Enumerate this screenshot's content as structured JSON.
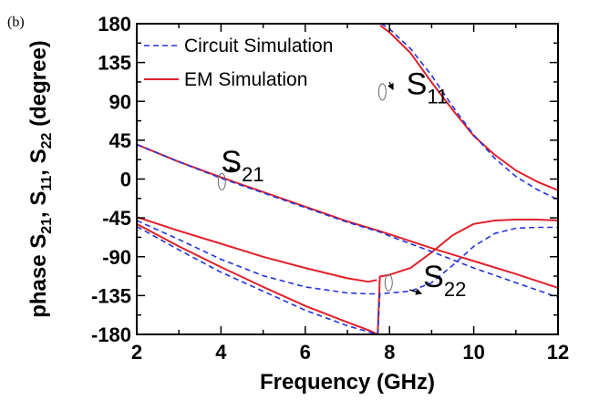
{
  "panel_label": "(b)",
  "colors": {
    "circuit": "#2233dd",
    "em": "#e0202a",
    "axis": "#000000"
  },
  "chart_data": {
    "type": "line",
    "title": "",
    "xlabel": "Frequency (GHz)",
    "ylabel_parts": [
      "phase S",
      "21",
      ", S",
      "11",
      ", S",
      "22",
      " (degree)"
    ],
    "xlim": [
      2,
      12
    ],
    "ylim": [
      -180,
      180
    ],
    "x_ticks": [
      2,
      4,
      6,
      8,
      10,
      12
    ],
    "y_ticks": [
      180,
      135,
      90,
      45,
      0,
      -45,
      -90,
      -135,
      -180
    ],
    "grid": false,
    "legend": {
      "placement": "top-left",
      "entries": [
        {
          "name": "Circuit Simulation",
          "style": "dashed",
          "color": "#2233dd"
        },
        {
          "name": "EM Simulation",
          "style": "solid",
          "color": "#e0202a"
        }
      ]
    },
    "annotations": [
      {
        "base": "S",
        "sub": "11",
        "x": 8.4,
        "y": 98
      },
      {
        "base": "S",
        "sub": "21",
        "x": 4.0,
        "y": 8
      },
      {
        "base": "S",
        "sub": "22",
        "x": 8.8,
        "y": -125
      }
    ],
    "series": [
      {
        "name": "EM Simulation",
        "curve": "S21",
        "style": "solid",
        "color": "#e0202a",
        "x": [
          2,
          3,
          4,
          5,
          6,
          7,
          7.75,
          8,
          9,
          10,
          11,
          12
        ],
        "y": [
          40,
          20,
          2,
          -15,
          -32,
          -49,
          -60,
          -64,
          -80,
          -95,
          -110,
          -126
        ]
      },
      {
        "name": "EM Simulation",
        "curve": "S11 (low)",
        "style": "solid",
        "color": "#e0202a",
        "x": [
          2,
          3,
          4,
          5,
          6,
          7,
          7.5,
          7.7
        ],
        "y": [
          -44,
          -60,
          -75,
          -90,
          -103,
          -115,
          -119,
          -117
        ]
      },
      {
        "name": "EM Simulation",
        "curve": "S11 (high)",
        "style": "solid",
        "color": "#e0202a",
        "x": [
          7.78,
          8,
          8.5,
          9,
          9.5,
          10,
          10.5,
          11,
          11.5,
          12
        ],
        "y": [
          178,
          170,
          146,
          112,
          80,
          50,
          28,
          10,
          -3,
          -13
        ]
      },
      {
        "name": "EM Simulation",
        "curve": "S22",
        "style": "solid",
        "color": "#e0202a",
        "x": [
          2,
          3,
          4,
          5,
          6,
          7,
          7.5,
          7.72,
          7.77,
          8,
          8.5,
          9,
          9.5,
          10,
          10.5,
          11,
          11.5,
          12
        ],
        "y": [
          -52,
          -78,
          -102,
          -125,
          -147,
          -166,
          -175,
          -180,
          -113,
          -111,
          -103,
          -85,
          -65,
          -52,
          -48,
          -47,
          -47,
          -48
        ]
      },
      {
        "name": "Circuit Simulation",
        "curve": "S21",
        "style": "dashed",
        "color": "#2233dd",
        "x": [
          2,
          3,
          4,
          5,
          6,
          7,
          7.75,
          8,
          9,
          10,
          11,
          12
        ],
        "y": [
          40,
          20,
          1,
          -16,
          -33,
          -50,
          -61,
          -66,
          -84,
          -103,
          -120,
          -137
        ]
      },
      {
        "name": "Circuit Simulation",
        "curve": "S11 (low)",
        "style": "dashed",
        "color": "#2233dd",
        "x": [
          2,
          3,
          4,
          5,
          6,
          7,
          7.5,
          7.7
        ],
        "y": [
          -48,
          -70,
          -93,
          -112,
          -125,
          -132,
          -133,
          -133
        ]
      },
      {
        "name": "Circuit Simulation",
        "curve": "S11 (high)",
        "style": "dashed",
        "color": "#2233dd",
        "x": [
          7.8,
          8,
          8.5,
          9,
          9.5,
          10,
          10.5,
          11,
          11.5,
          12
        ],
        "y": [
          180,
          174,
          151,
          120,
          84,
          51,
          24,
          3,
          -12,
          -24
        ]
      },
      {
        "name": "Circuit Simulation",
        "curve": "S22",
        "style": "dashed",
        "color": "#2233dd",
        "x": [
          2,
          3,
          4,
          5,
          6,
          7,
          7.5,
          7.72,
          7.77,
          8,
          8.5,
          9,
          9.5,
          10,
          10.5,
          11,
          11.5,
          12
        ],
        "y": [
          -55,
          -82,
          -108,
          -130,
          -152,
          -170,
          -177,
          -180,
          -133,
          -132,
          -130,
          -120,
          -100,
          -78,
          -63,
          -57,
          -56,
          -56
        ]
      }
    ]
  }
}
